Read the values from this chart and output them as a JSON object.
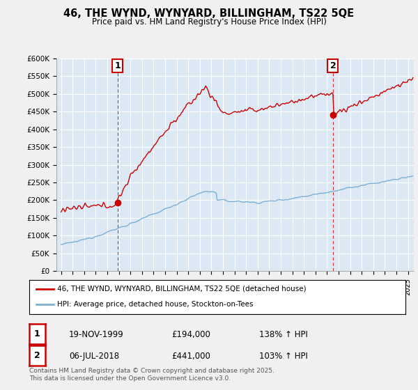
{
  "title_line1": "46, THE WYND, WYNYARD, BILLINGHAM, TS22 5QE",
  "title_line2": "Price paid vs. HM Land Registry's House Price Index (HPI)",
  "bg_color": "#f0f0f0",
  "plot_bg_color": "#dce9f5",
  "grid_color": "#ffffff",
  "red_color": "#cc0000",
  "blue_color": "#7aafd4",
  "marker1_date_x": 1999.88,
  "marker1_price": 194000,
  "marker2_date_x": 2018.51,
  "marker2_price": 441000,
  "ylim_max": 600000,
  "ylim_min": 0,
  "xlim_min": 1994.6,
  "xlim_max": 2025.5,
  "legend_label_red": "46, THE WYND, WYNYARD, BILLINGHAM, TS22 5QE (detached house)",
  "legend_label_blue": "HPI: Average price, detached house, Stockton-on-Tees",
  "annotation1_label": "1",
  "annotation2_label": "2",
  "table_row1": [
    "1",
    "19-NOV-1999",
    "£194,000",
    "138% ↑ HPI"
  ],
  "table_row2": [
    "2",
    "06-JUL-2018",
    "£441,000",
    "103% ↑ HPI"
  ],
  "footer_text": "Contains HM Land Registry data © Crown copyright and database right 2025.\nThis data is licensed under the Open Government Licence v3.0.",
  "yticks": [
    0,
    50000,
    100000,
    150000,
    200000,
    250000,
    300000,
    350000,
    400000,
    450000,
    500000,
    550000,
    600000
  ],
  "ytick_labels": [
    "£0",
    "£50K",
    "£100K",
    "£150K",
    "£200K",
    "£250K",
    "£300K",
    "£350K",
    "£400K",
    "£450K",
    "£500K",
    "£550K",
    "£600K"
  ]
}
